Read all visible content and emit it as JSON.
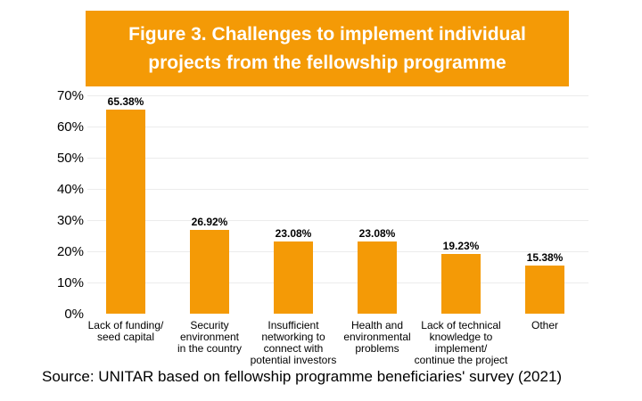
{
  "banner": {
    "line1": "Figure 3. Challenges to implement individual",
    "line2": "projects from the fellowship programme"
  },
  "source_text": "Source: UNITAR based on fellowship programme beneficiaries' survey (2021)",
  "colors": {
    "accent_orange": "#F49A06",
    "banner_text": "#FFFFFF",
    "label_text": "#000000",
    "gridline": "#ECECEC"
  },
  "chart_data": {
    "type": "bar",
    "title": "Figure 3. Challenges to implement individual projects from the fellowship programme",
    "categories": [
      "Lack of funding/ seed capital",
      "Security environment in the country",
      "Insufficient networking to connect with potential investors",
      "Health and environmental problems",
      "Lack of technical knowledge to implement/ continue the project",
      "Other"
    ],
    "category_label_lines": [
      [
        "Lack of funding/",
        "seed capital"
      ],
      [
        "Security",
        "environment",
        "in the country"
      ],
      [
        "Insufficient",
        "networking to",
        "connect with",
        "potential investors"
      ],
      [
        "Health and",
        "environmental",
        "problems"
      ],
      [
        "Lack of technical",
        "knowledge to",
        "implement/",
        "continue the project"
      ],
      [
        "Other"
      ]
    ],
    "values": [
      65.38,
      26.92,
      23.08,
      23.08,
      19.23,
      15.38
    ],
    "data_labels": [
      "65.38%",
      "26.92%",
      "23.08%",
      "23.08%",
      "19.23%",
      "15.38%"
    ],
    "y_ticks": [
      "0%",
      "10%",
      "20%",
      "30%",
      "40%",
      "50%",
      "60%",
      "70%"
    ],
    "ylim": [
      0,
      70
    ],
    "grid": "faint horizontal gridlines every 10%",
    "legend": "none",
    "bar_color": "#F49A06",
    "xlabel": "",
    "ylabel": ""
  }
}
